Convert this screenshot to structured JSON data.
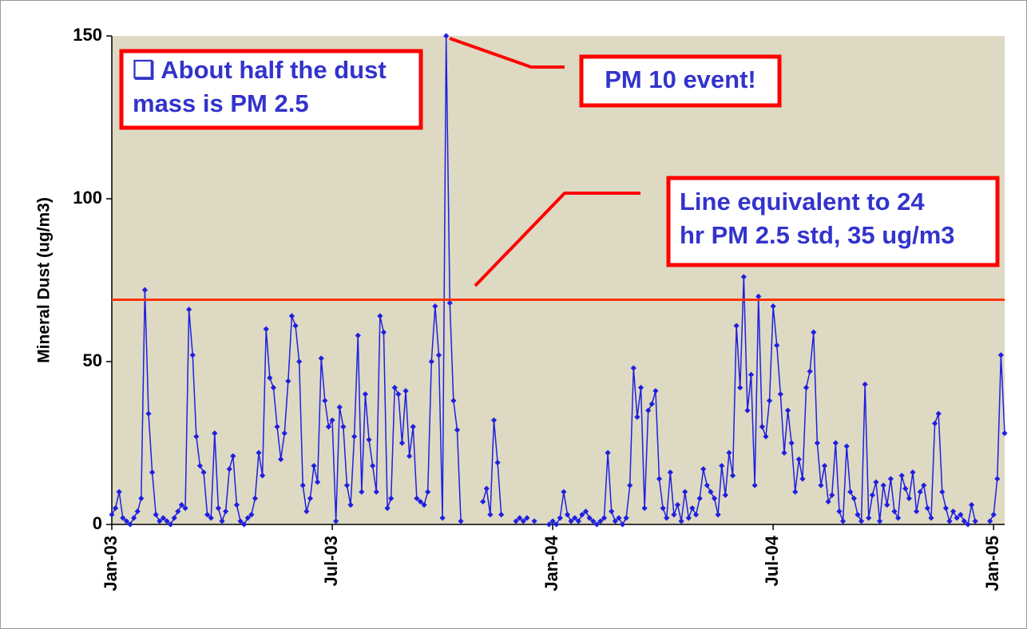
{
  "chart_data": {
    "type": "line",
    "ylabel": "Mineral Dust (ug/m3)",
    "ylim": [
      0,
      150
    ],
    "yticks": [
      0,
      50,
      100,
      150
    ],
    "reference_value": 69,
    "reference_color": "#ff3300",
    "background": "#ddd9c3",
    "annotations": [
      {
        "lines": [
          "❏ About half the dust",
          "mass is PM 2.5"
        ]
      },
      {
        "lines": [
          "PM 10 event!"
        ]
      },
      {
        "lines": [
          "Line equivalent to 24",
          "hr PM 2.5 std, 35 ug/m3"
        ]
      }
    ],
    "categories": [
      "Jan-03",
      null,
      null,
      null,
      null,
      null,
      null,
      null,
      null,
      null,
      null,
      null,
      null,
      null,
      null,
      null,
      null,
      null,
      null,
      null,
      null,
      null,
      null,
      null,
      null,
      null,
      null,
      null,
      null,
      null,
      null,
      null,
      null,
      null,
      null,
      null,
      null,
      null,
      null,
      null,
      null,
      null,
      null,
      null,
      null,
      null,
      null,
      null,
      null,
      null,
      null,
      null,
      null,
      null,
      null,
      null,
      null,
      null,
      null,
      null,
      "Jul-03",
      null,
      null,
      null,
      null,
      null,
      null,
      null,
      null,
      null,
      null,
      null,
      null,
      null,
      null,
      null,
      null,
      null,
      null,
      null,
      null,
      null,
      null,
      null,
      null,
      null,
      null,
      null,
      null,
      null,
      null,
      null,
      null,
      null,
      null,
      null,
      null,
      null,
      null,
      null,
      null,
      null,
      null,
      null,
      null,
      null,
      null,
      null,
      null,
      null,
      null,
      null,
      null,
      null,
      null,
      null,
      null,
      null,
      null,
      null,
      "Jan-04",
      null,
      null,
      null,
      null,
      null,
      null,
      null,
      null,
      null,
      null,
      null,
      null,
      null,
      null,
      null,
      null,
      null,
      null,
      null,
      null,
      null,
      null,
      null,
      null,
      null,
      null,
      null,
      null,
      null,
      null,
      null,
      null,
      null,
      null,
      null,
      null,
      null,
      null,
      null,
      null,
      null,
      null,
      null,
      null,
      null,
      null,
      null,
      null,
      null,
      null,
      null,
      null,
      null,
      null,
      null,
      null,
      null,
      null,
      null,
      "Jul-04",
      null,
      null,
      null,
      null,
      null,
      null,
      null,
      null,
      null,
      null,
      null,
      null,
      null,
      null,
      null,
      null,
      null,
      null,
      null,
      null,
      null,
      null,
      null,
      null,
      null,
      null,
      null,
      null,
      null,
      null,
      null,
      null,
      null,
      null,
      null,
      null,
      null,
      null,
      null,
      null,
      null,
      null,
      null,
      null,
      null,
      null,
      null,
      null,
      null,
      null,
      null,
      null,
      null,
      null,
      null,
      null,
      null,
      null,
      null,
      "Jan-05",
      null,
      null,
      null
    ],
    "series": [
      {
        "color": "#1f1fe0",
        "values": [
          3,
          5,
          10,
          2,
          1,
          0,
          2,
          4,
          8,
          72,
          34,
          16,
          3,
          1,
          2,
          1,
          0,
          2,
          4,
          6,
          5,
          66,
          52,
          27,
          18,
          16,
          3,
          2,
          28,
          5,
          1,
          4,
          17,
          21,
          6,
          1,
          0,
          2,
          3,
          8,
          22,
          15,
          60,
          45,
          42,
          30,
          20,
          28,
          44,
          64,
          61,
          50,
          12,
          4,
          8,
          18,
          13,
          51,
          38,
          30,
          32,
          1,
          36,
          30,
          12,
          6,
          27,
          58,
          10,
          40,
          26,
          18,
          10,
          64,
          59,
          5,
          8,
          42,
          40,
          25,
          41,
          21,
          30,
          8,
          7,
          6,
          10,
          50,
          67,
          52,
          2,
          150,
          68,
          38,
          29,
          1,
          null,
          null,
          null,
          null,
          null,
          7,
          11,
          3,
          32,
          19,
          3,
          null,
          null,
          null,
          1,
          2,
          1,
          2,
          null,
          1,
          null,
          null,
          null,
          0,
          1,
          0,
          2,
          10,
          3,
          1,
          2,
          1,
          3,
          4,
          2,
          1,
          0,
          1,
          2,
          22,
          4,
          1,
          2,
          0,
          2,
          12,
          48,
          33,
          42,
          5,
          35,
          37,
          41,
          14,
          5,
          2,
          16,
          3,
          6,
          1,
          10,
          2,
          5,
          3,
          8,
          17,
          12,
          10,
          8,
          3,
          18,
          9,
          22,
          15,
          61,
          42,
          76,
          35,
          46,
          12,
          70,
          30,
          27,
          38,
          67,
          55,
          40,
          22,
          35,
          25,
          10,
          20,
          14,
          42,
          47,
          59,
          25,
          12,
          18,
          7,
          9,
          25,
          4,
          1,
          24,
          10,
          8,
          3,
          1,
          43,
          2,
          9,
          13,
          1,
          12,
          6,
          14,
          4,
          2,
          15,
          11,
          8,
          16,
          4,
          10,
          12,
          5,
          2,
          31,
          34,
          10,
          5,
          1,
          4,
          2,
          3,
          1,
          0,
          6,
          1,
          null,
          null,
          null,
          1,
          3,
          14,
          52,
          28
        ]
      }
    ]
  }
}
